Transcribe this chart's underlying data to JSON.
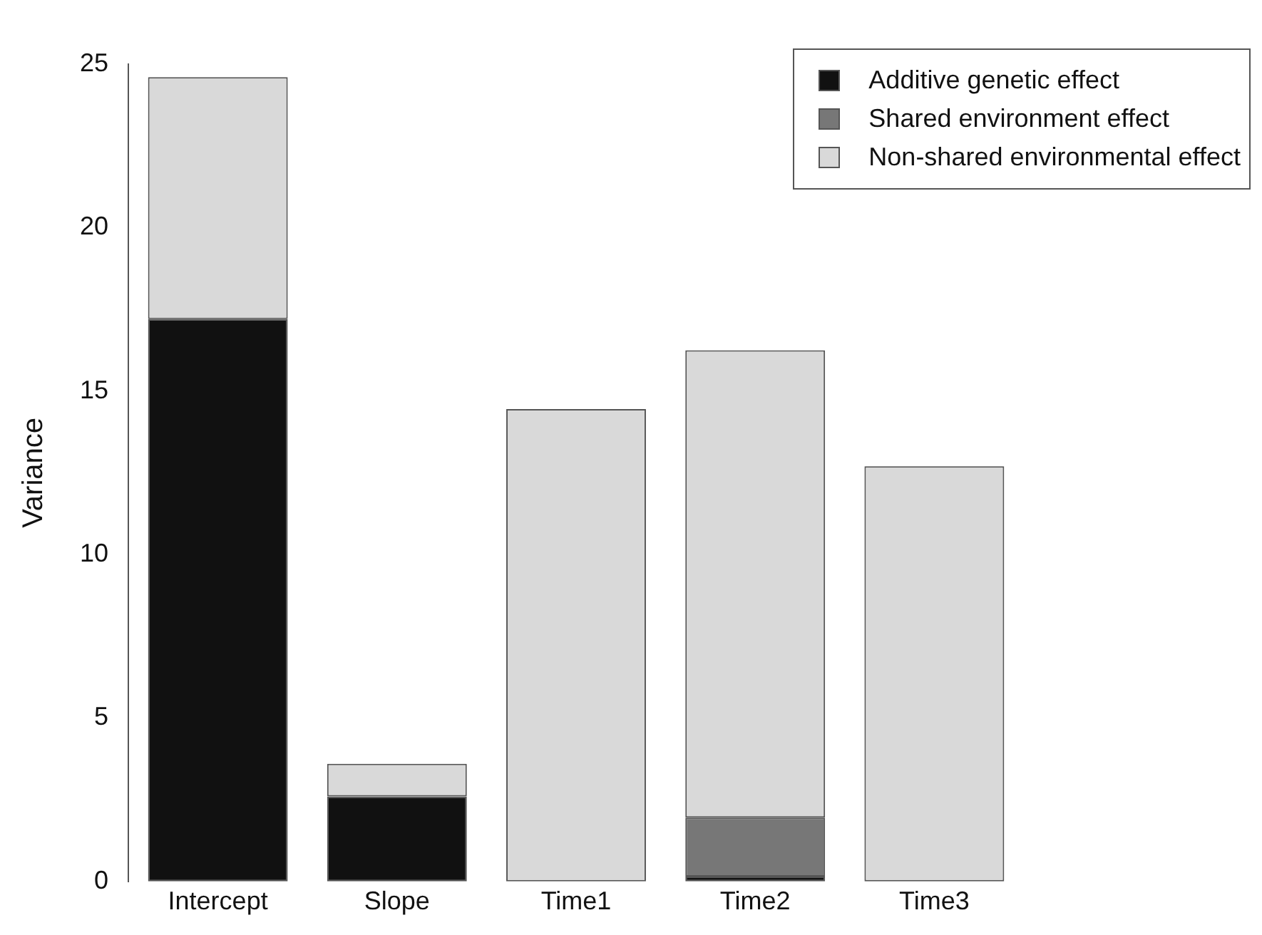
{
  "chart_data": {
    "type": "bar",
    "ylabel": "Variance",
    "categories": [
      "Intercept",
      "Slope",
      "Time1",
      "Time2",
      "Time3"
    ],
    "stacked": true,
    "series": [
      {
        "name": "Additive genetic effect",
        "color": "#111111",
        "values": [
          17.2,
          2.6,
          0,
          0.15,
          0
        ]
      },
      {
        "name": "Shared environment effect",
        "color": "#777777",
        "values": [
          0,
          0,
          0,
          1.8,
          0
        ]
      },
      {
        "name": "Non-shared environmental effect",
        "color": "#d9d9d9",
        "values": [
          7.4,
          1.0,
          14.45,
          14.3,
          12.7
        ]
      }
    ],
    "ylim": [
      0,
      25
    ],
    "yticks": [
      0,
      5,
      10,
      15,
      20,
      25
    ],
    "grid": false,
    "legend": "top right"
  }
}
